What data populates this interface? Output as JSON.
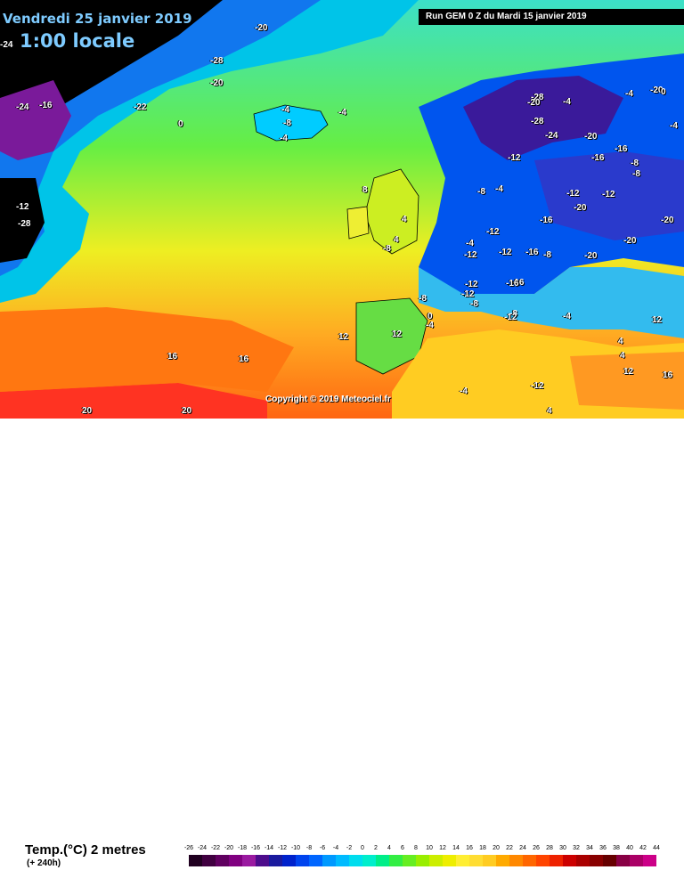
{
  "header": {
    "date": "Vendredi 25 janvier 2019",
    "time": "1:00 locale",
    "run": "Run GEM 0 Z du Mardi 15 janvier 2019"
  },
  "copyright": "Copyright © 2019 Meteociel.fr",
  "legend": {
    "title": "Temp.(°C) 2 metres",
    "subtitle": "(+ 240h)",
    "ticks": [
      "-26",
      "-24",
      "-22",
      "-20",
      "-18",
      "-16",
      "-14",
      "-12",
      "-10",
      "-8",
      "-6",
      "-4",
      "-2",
      "0",
      "2",
      "4",
      "6",
      "8",
      "10",
      "12",
      "14",
      "16",
      "18",
      "20",
      "22",
      "24",
      "26",
      "28",
      "30",
      "32",
      "34",
      "36",
      "38",
      "40",
      "42",
      "44"
    ],
    "colors": [
      "#200020",
      "#400040",
      "#600060",
      "#800080",
      "#9a1aa0",
      "#4d0c8c",
      "#1a1a9e",
      "#0022cc",
      "#0044ee",
      "#0066ff",
      "#0099ff",
      "#00bbff",
      "#00ddee",
      "#00eecc",
      "#00ee88",
      "#33ee44",
      "#66ee22",
      "#99ee00",
      "#ccee00",
      "#eeee00",
      "#ffee33",
      "#ffdd33",
      "#ffcc22",
      "#ffaa00",
      "#ff8800",
      "#ff6600",
      "#ff4400",
      "#ee2200",
      "#cc0000",
      "#aa0000",
      "#880000",
      "#660000",
      "#880044",
      "#aa0066",
      "#cc0088"
    ]
  },
  "map_labels": [
    {
      "t": "-20"
    },
    {
      "t": "-24"
    },
    {
      "t": "-28"
    },
    {
      "t": "-20"
    },
    {
      "t": "-16"
    },
    {
      "t": "-24"
    },
    {
      "t": "-22"
    },
    {
      "t": "-4"
    },
    {
      "t": "0"
    },
    {
      "t": "-4"
    },
    {
      "t": "-8"
    },
    {
      "t": "-4"
    },
    {
      "t": "-12"
    },
    {
      "t": "-28"
    },
    {
      "t": "-28"
    },
    {
      "t": "-4"
    },
    {
      "t": "-4"
    },
    {
      "t": "-20"
    },
    {
      "t": "-28"
    },
    {
      "t": "-24"
    },
    {
      "t": "-20"
    },
    {
      "t": "-16"
    },
    {
      "t": "-12"
    },
    {
      "t": "-8"
    },
    {
      "t": "-16"
    },
    {
      "t": "-12"
    },
    {
      "t": "-20"
    },
    {
      "t": "-16"
    },
    {
      "t": "-12"
    },
    {
      "t": "-20"
    },
    {
      "t": "-8"
    },
    {
      "t": "-12"
    },
    {
      "t": "-16"
    },
    {
      "t": "-20"
    },
    {
      "t": "-4"
    },
    {
      "t": "-8"
    },
    {
      "t": "-12"
    },
    {
      "t": "-16"
    },
    {
      "t": "-20"
    },
    {
      "t": "8"
    },
    {
      "t": "4"
    },
    {
      "t": "4"
    },
    {
      "t": "-8"
    },
    {
      "t": "-4"
    },
    {
      "t": "-12"
    },
    {
      "t": "12"
    },
    {
      "t": "-8"
    },
    {
      "t": "-16"
    },
    {
      "t": "-12"
    },
    {
      "t": "-8"
    },
    {
      "t": "-4"
    },
    {
      "t": "0"
    },
    {
      "t": "-4"
    },
    {
      "t": "12"
    },
    {
      "t": "16"
    },
    {
      "t": "16"
    },
    {
      "t": "20"
    },
    {
      "t": "20"
    },
    {
      "t": "-20"
    },
    {
      "t": "0"
    },
    {
      "t": "-4"
    },
    {
      "t": "-8"
    },
    {
      "t": "4"
    },
    {
      "t": "12"
    },
    {
      "t": "16"
    },
    {
      "t": "-12"
    },
    {
      "t": "-4"
    },
    {
      "t": "4"
    },
    {
      "t": "12"
    },
    {
      "t": "-12"
    },
    {
      "t": "4"
    },
    {
      "t": "-12"
    },
    {
      "t": "-8"
    }
  ]
}
